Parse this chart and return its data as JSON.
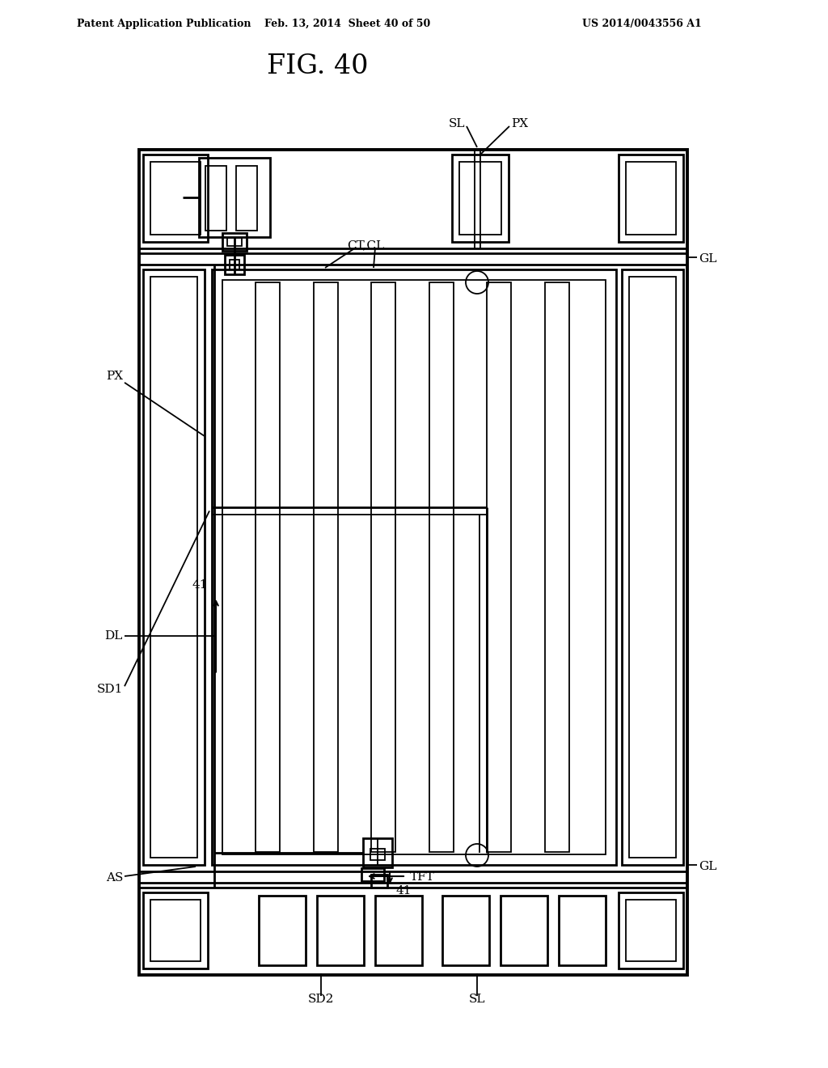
{
  "bg_color": "#ffffff",
  "lc": "#000000",
  "title": "FIG. 40",
  "header_left": "Patent Application Publication",
  "header_center": "Feb. 13, 2014  Sheet 40 of 50",
  "header_right": "US 2014/0043556 A1",
  "lw_thick": 2.8,
  "lw_med": 2.0,
  "lw_thin": 1.3,
  "label_fs": 11
}
